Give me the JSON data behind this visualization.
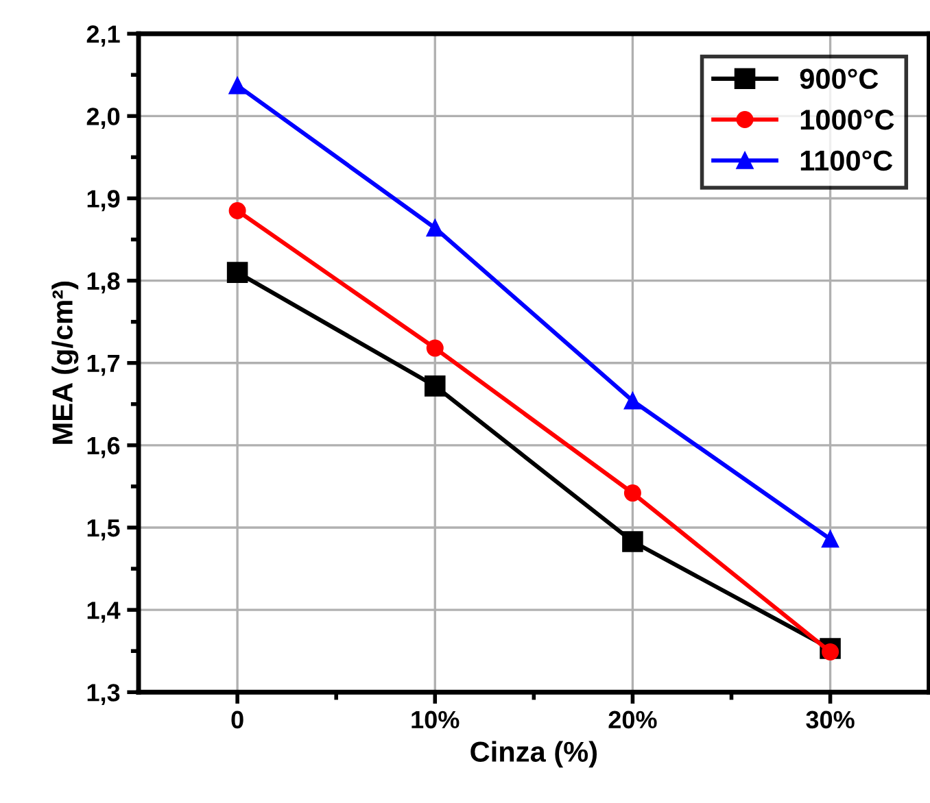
{
  "chart_data": {
    "type": "line",
    "xlabel": "Cinza (%)",
    "ylabel": "MEA (g/cm²)",
    "categories": [
      "0",
      "10%",
      "20%",
      "30%"
    ],
    "series": [
      {
        "name": "900°C",
        "color": "#000000",
        "marker": "square",
        "values": [
          1.81,
          1.672,
          1.483,
          1.353
        ]
      },
      {
        "name": "1000°C",
        "color": "#ff0000",
        "marker": "circle",
        "values": [
          1.885,
          1.718,
          1.542,
          1.349
        ]
      },
      {
        "name": "1100°C",
        "color": "#0000ff",
        "marker": "triangle",
        "values": [
          2.037,
          1.864,
          1.654,
          1.486
        ]
      }
    ],
    "ylim": [
      1.3,
      2.1
    ],
    "yticks": [
      {
        "value": 1.3,
        "label": "1,3"
      },
      {
        "value": 1.4,
        "label": "1,4"
      },
      {
        "value": 1.5,
        "label": "1,5"
      },
      {
        "value": 1.6,
        "label": "1,6"
      },
      {
        "value": 1.7,
        "label": "1,7"
      },
      {
        "value": 1.8,
        "label": "1,8"
      },
      {
        "value": 1.9,
        "label": "1,9"
      },
      {
        "value": 2.0,
        "label": "2,0"
      },
      {
        "value": 2.1,
        "label": "2,1"
      }
    ],
    "grid": true,
    "legend": "top right",
    "line_style": "solid"
  }
}
